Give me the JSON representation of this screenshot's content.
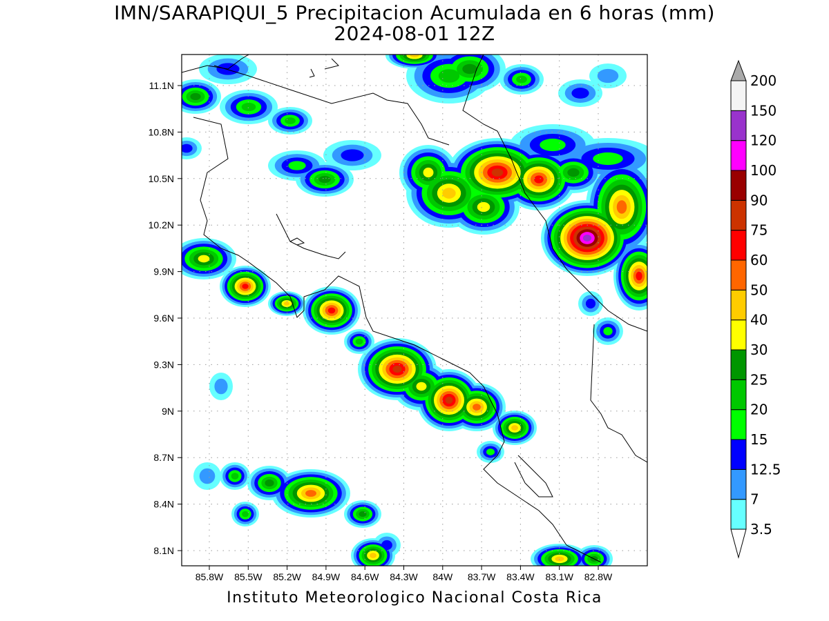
{
  "title": {
    "line1": "IMN/SARAPIQUI_5 Precipitacion Acumulada en 6 horas (mm)",
    "line2": "2024-08-01 12Z"
  },
  "footer": "Instituto Meteorologico Nacional Costa Rica",
  "map": {
    "lon_ticks": [
      "85.8W",
      "85.5W",
      "85.2W",
      "84.9W",
      "84.6W",
      "84.3W",
      "84W",
      "83.7W",
      "83.4W",
      "83.1W",
      "82.8W"
    ],
    "lat_ticks": [
      "11.1N",
      "10.8N",
      "10.5N",
      "10.2N",
      "9.9N",
      "9.6N",
      "9.3N",
      "9N",
      "8.7N",
      "8.4N",
      "8.1N"
    ],
    "grid": true
  },
  "colorbar": {
    "labels": [
      "3.5",
      "7",
      "12.5",
      "15",
      "20",
      "25",
      "30",
      "40",
      "50",
      "60",
      "75",
      "90",
      "100",
      "120",
      "150",
      "200"
    ],
    "colors": [
      "#66ffff",
      "#3399ff",
      "#0000ff",
      "#00ff00",
      "#00c800",
      "#009600",
      "#ffff00",
      "#ffcc00",
      "#ff6600",
      "#ff0000",
      "#cc3300",
      "#990000",
      "#ff00ff",
      "#9933cc",
      "#f4f4f4"
    ],
    "over_color": "#aaaaaa",
    "under_color": "#ffffff"
  }
}
